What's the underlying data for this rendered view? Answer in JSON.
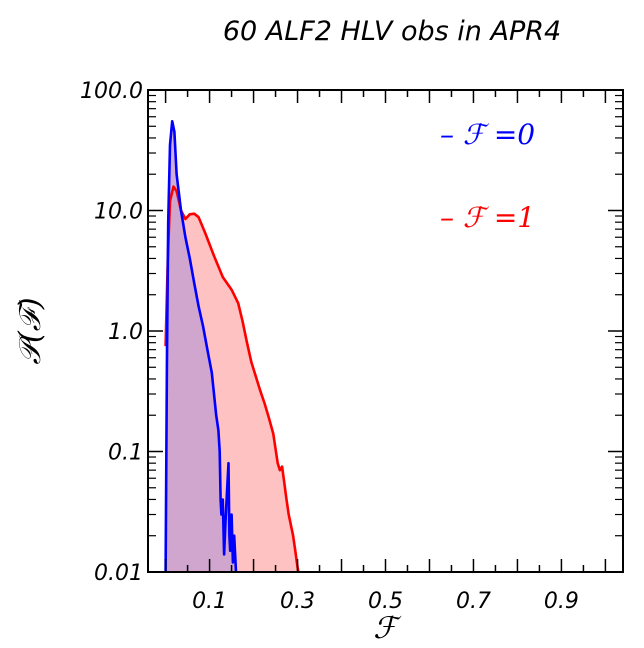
{
  "chart_data": {
    "type": "area",
    "title": "60 ALF2 HLV obs in APR4",
    "xlabel": "ℱ",
    "ylabel": "𝒫(ℱ)",
    "yscale": "log",
    "xlim": [
      -0.04,
      1.04
    ],
    "ylim": [
      0.01,
      100
    ],
    "x_ticks": [
      {
        "value": 0.1,
        "label": "0.1"
      },
      {
        "value": 0.3,
        "label": "0.3"
      },
      {
        "value": 0.5,
        "label": "0.5"
      },
      {
        "value": 0.7,
        "label": "0.7"
      },
      {
        "value": 0.9,
        "label": "0.9"
      }
    ],
    "y_ticks": [
      {
        "value": 100,
        "label": "100.0"
      },
      {
        "value": 10,
        "label": "10.0"
      },
      {
        "value": 1,
        "label": "1.0"
      },
      {
        "value": 0.1,
        "label": "0.1"
      },
      {
        "value": 0.01,
        "label": "0.01"
      }
    ],
    "legend_position": "top-right",
    "series": [
      {
        "name": "– ℱ =1",
        "color": "#ff0000",
        "fill": "#ffc2c2",
        "points": [
          [
            0.0,
            0.75
          ],
          [
            0.005,
            4.0
          ],
          [
            0.01,
            12.0
          ],
          [
            0.018,
            15.8
          ],
          [
            0.025,
            14.5
          ],
          [
            0.035,
            10.0
          ],
          [
            0.045,
            8.5
          ],
          [
            0.055,
            9.3
          ],
          [
            0.065,
            9.4
          ],
          [
            0.075,
            8.8
          ],
          [
            0.09,
            6.5
          ],
          [
            0.11,
            4.2
          ],
          [
            0.13,
            2.8
          ],
          [
            0.15,
            2.2
          ],
          [
            0.165,
            1.7
          ],
          [
            0.175,
            1.2
          ],
          [
            0.185,
            0.8
          ],
          [
            0.195,
            0.55
          ],
          [
            0.205,
            0.42
          ],
          [
            0.215,
            0.32
          ],
          [
            0.225,
            0.25
          ],
          [
            0.235,
            0.19
          ],
          [
            0.245,
            0.14
          ],
          [
            0.255,
            0.08
          ],
          [
            0.26,
            0.07
          ],
          [
            0.265,
            0.075
          ],
          [
            0.27,
            0.055
          ],
          [
            0.275,
            0.04
          ],
          [
            0.28,
            0.03
          ],
          [
            0.29,
            0.02
          ],
          [
            0.295,
            0.015
          ],
          [
            0.3,
            0.011
          ],
          [
            0.302,
            0.01
          ]
        ]
      },
      {
        "name": "– ℱ =0",
        "color": "#0000ff",
        "fill": "#c8a0d0",
        "points": [
          [
            0.0,
            0.01
          ],
          [
            0.003,
            0.5
          ],
          [
            0.006,
            8.0
          ],
          [
            0.01,
            35.0
          ],
          [
            0.015,
            55.0
          ],
          [
            0.02,
            45.0
          ],
          [
            0.025,
            20.0
          ],
          [
            0.035,
            10.0
          ],
          [
            0.045,
            6.0
          ],
          [
            0.055,
            4.0
          ],
          [
            0.065,
            2.5
          ],
          [
            0.075,
            1.6
          ],
          [
            0.085,
            1.1
          ],
          [
            0.095,
            0.7
          ],
          [
            0.105,
            0.45
          ],
          [
            0.11,
            0.3
          ],
          [
            0.115,
            0.2
          ],
          [
            0.12,
            0.15
          ],
          [
            0.123,
            0.1
          ],
          [
            0.125,
            0.04
          ],
          [
            0.127,
            0.03
          ],
          [
            0.13,
            0.04
          ],
          [
            0.133,
            0.014
          ],
          [
            0.136,
            0.025
          ],
          [
            0.14,
            0.05
          ],
          [
            0.143,
            0.08
          ],
          [
            0.145,
            0.02
          ],
          [
            0.147,
            0.015
          ],
          [
            0.15,
            0.03
          ],
          [
            0.153,
            0.012
          ],
          [
            0.156,
            0.02
          ],
          [
            0.16,
            0.01
          ]
        ]
      }
    ]
  }
}
